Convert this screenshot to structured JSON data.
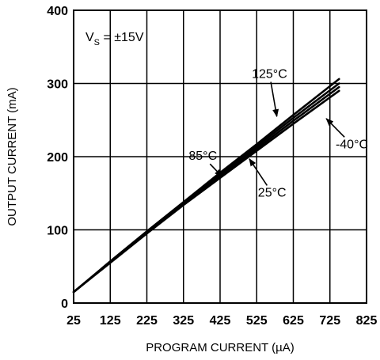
{
  "chart_data": {
    "type": "line",
    "xlabel": "PROGRAM CURRENT (µA)",
    "ylabel": "OUTPUT CURRENT (mA)",
    "xlim": [
      25,
      825
    ],
    "ylim": [
      0,
      400
    ],
    "xticks": [
      25,
      125,
      225,
      325,
      425,
      525,
      625,
      725,
      825
    ],
    "yticks": [
      0,
      100,
      200,
      300,
      400
    ],
    "grid": true,
    "condition": {
      "main": "V",
      "sub": "S",
      "rest": " = ±15V"
    },
    "series": [
      {
        "name": "125°C",
        "x": [
          25,
          125,
          225,
          325,
          425,
          525,
          625,
          750
        ],
        "y": [
          15,
          57,
          98,
          138,
          178,
          217,
          257,
          306
        ]
      },
      {
        "name": "85°C",
        "x": [
          25,
          125,
          225,
          325,
          425,
          525,
          625,
          750
        ],
        "y": [
          15,
          56,
          97,
          137,
          176,
          214,
          253,
          300
        ]
      },
      {
        "name": "25°C",
        "x": [
          25,
          125,
          225,
          325,
          425,
          525,
          625,
          750
        ],
        "y": [
          15,
          56,
          96,
          135,
          173,
          211,
          249,
          295
        ]
      },
      {
        "name": "-40°C",
        "x": [
          25,
          125,
          225,
          325,
          425,
          525,
          625,
          750
        ],
        "y": [
          15,
          55,
          95,
          134,
          171,
          208,
          245,
          290
        ]
      }
    ],
    "annotations": [
      {
        "text": "125°C",
        "series": "125°C",
        "tx": 560,
        "ty": 314,
        "ax": 580,
        "ay": 255
      },
      {
        "text": "-40°C",
        "series": "-40°C",
        "tx": 785,
        "ty": 218,
        "ax": 715,
        "ay": 252
      },
      {
        "text": "85°C",
        "series": "85°C",
        "tx": 378,
        "ty": 202,
        "ax": 430,
        "ay": 173
      },
      {
        "text": "25°C",
        "series": "25°C",
        "tx": 567,
        "ty": 152,
        "ax": 505,
        "ay": 197
      }
    ]
  }
}
